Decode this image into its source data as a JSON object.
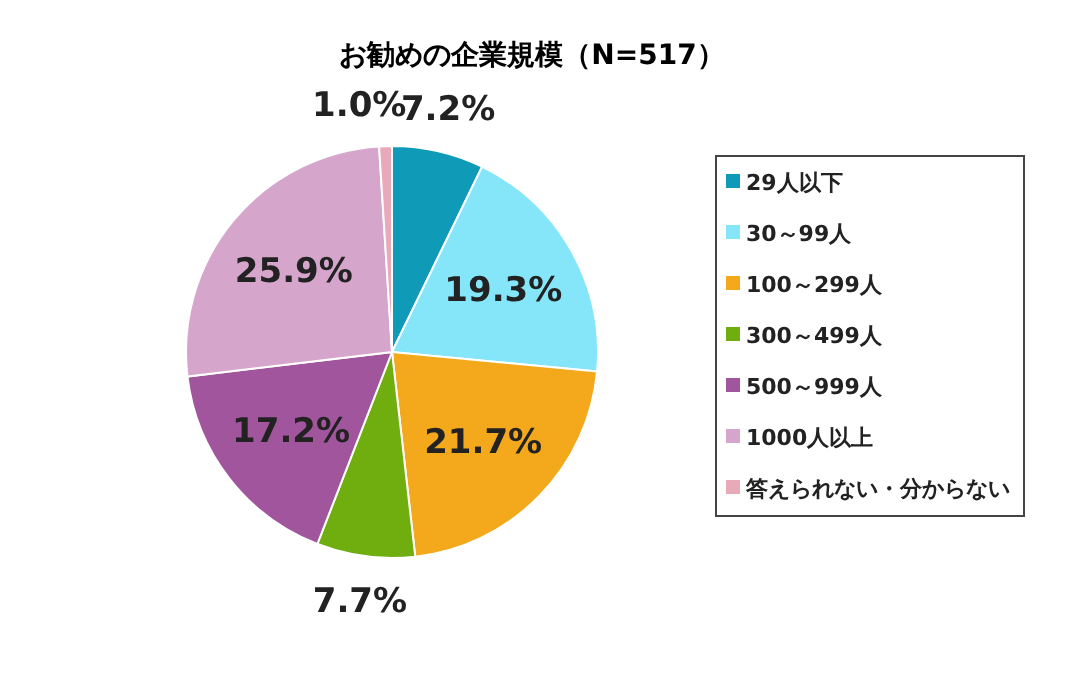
{
  "chart_data": {
    "type": "pie",
    "title": "お勧めの企業規模（N=517）",
    "categories": [
      "29人以下",
      "30～99人",
      "100～299人",
      "300～499人",
      "500～999人",
      "1000人以上",
      "答えられない・分からない"
    ],
    "values": [
      7.2,
      19.3,
      21.7,
      7.7,
      17.2,
      25.9,
      1.0
    ],
    "colors": [
      "#0f9bb8",
      "#84e6f8",
      "#f4a91c",
      "#70ad0f",
      "#a1559d",
      "#d5a5cb",
      "#e8a9b8"
    ],
    "value_labels": [
      "7.2%",
      "19.3%",
      "21.7%",
      "7.7%",
      "17.2%",
      "25.9%",
      "1.0%"
    ],
    "legend": "right"
  }
}
